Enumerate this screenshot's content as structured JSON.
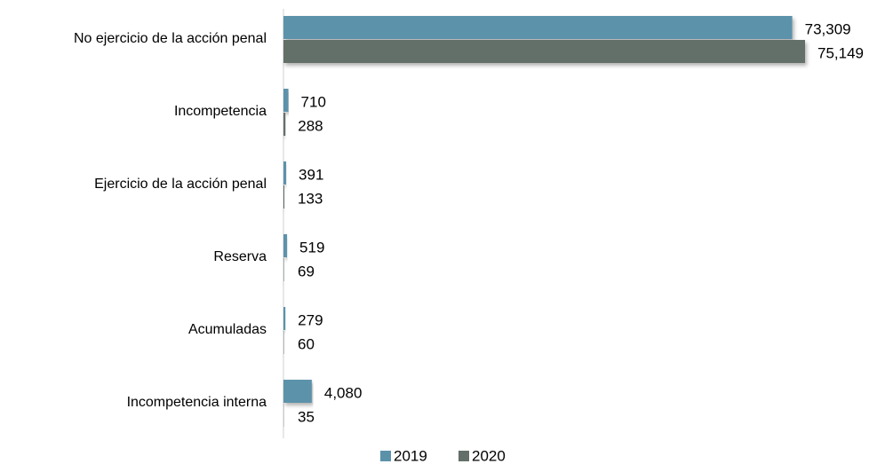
{
  "chart_data": {
    "type": "bar",
    "orientation": "horizontal",
    "categories": [
      "No ejercicio de la acción penal",
      "Incompetencia",
      "Ejercicio de la acción penal",
      "Reserva",
      "Acumuladas",
      "Incompetencia interna"
    ],
    "series": [
      {
        "name": "2019",
        "color": "#5b92aa",
        "values": [
          73309,
          710,
          391,
          519,
          279,
          4080
        ],
        "value_labels": [
          "73,309",
          "710",
          "391",
          "519",
          "279",
          "4,080"
        ]
      },
      {
        "name": "2020",
        "color": "#637069",
        "values": [
          75149,
          288,
          133,
          69,
          60,
          35
        ],
        "value_labels": [
          "75,149",
          "288",
          "133",
          "69",
          "60",
          "35"
        ]
      }
    ],
    "legend": "bottom"
  }
}
